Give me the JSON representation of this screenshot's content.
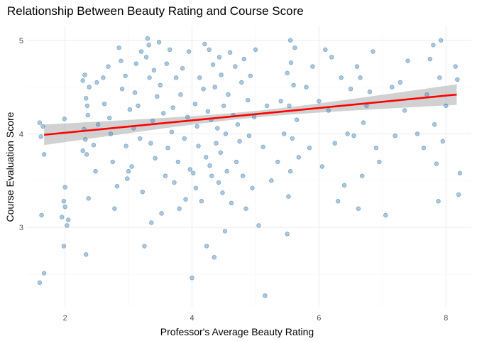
{
  "chart_data": {
    "type": "scatter",
    "title": "Relationship Between Beauty Rating and Course Score",
    "xlabel": "Professor's Average Beauty Rating",
    "ylabel": "Course Evaluation Score",
    "xlim": [
      1.4,
      8.4
    ],
    "ylim": [
      2.15,
      5.15
    ],
    "x_ticks": [
      2,
      4,
      6,
      8
    ],
    "y_ticks": [
      3,
      4,
      5
    ],
    "grid": true,
    "legend": "none",
    "colors": {
      "points": "#4682b4",
      "fit_line": "#ff0000",
      "ci_band": "#999999"
    },
    "fit": {
      "method": "linear",
      "x": [
        1.67,
        8.17
      ],
      "y": [
        3.99,
        4.42
      ],
      "ci_halfwidth_ends": 0.11,
      "ci_halfwidth_mid": 0.035
    },
    "points": [
      [
        1.6,
        2.41
      ],
      [
        1.67,
        2.51
      ],
      [
        1.63,
        3.13
      ],
      [
        1.67,
        3.78
      ],
      [
        1.6,
        4.12
      ],
      [
        1.65,
        4.08
      ],
      [
        1.62,
        3.97
      ],
      [
        1.98,
        2.8
      ],
      [
        2.03,
        3.02
      ],
      [
        2.05,
        3.08
      ],
      [
        2.0,
        3.22
      ],
      [
        1.98,
        3.28
      ],
      [
        2.0,
        3.43
      ],
      [
        1.99,
        4.16
      ],
      [
        1.95,
        3.11
      ],
      [
        2.33,
        2.71
      ],
      [
        2.37,
        3.31
      ],
      [
        2.28,
        3.82
      ],
      [
        2.32,
        3.94
      ],
      [
        2.3,
        4.05
      ],
      [
        2.35,
        4.3
      ],
      [
        2.33,
        4.38
      ],
      [
        2.38,
        4.5
      ],
      [
        2.31,
        4.63
      ],
      [
        2.28,
        4.57
      ],
      [
        2.36,
        4.2
      ],
      [
        2.34,
        3.78
      ],
      [
        2.48,
        3.6
      ],
      [
        2.45,
        3.88
      ],
      [
        2.52,
        4.1
      ],
      [
        2.5,
        4.55
      ],
      [
        2.6,
        4.6
      ],
      [
        2.62,
        4.32
      ],
      [
        2.7,
        4.17
      ],
      [
        2.68,
        4.72
      ],
      [
        2.72,
        4.0
      ],
      [
        2.75,
        3.7
      ],
      [
        2.78,
        3.2
      ],
      [
        2.82,
        3.44
      ],
      [
        2.85,
        4.92
      ],
      [
        2.88,
        4.78
      ],
      [
        2.9,
        4.48
      ],
      [
        2.95,
        4.62
      ],
      [
        2.96,
        3.87
      ],
      [
        2.98,
        3.52
      ],
      [
        3.0,
        3.6
      ],
      [
        3.02,
        4.26
      ],
      [
        3.05,
        3.65
      ],
      [
        3.08,
        4.06
      ],
      [
        3.1,
        4.44
      ],
      [
        3.12,
        4.75
      ],
      [
        3.15,
        4.3
      ],
      [
        3.18,
        3.95
      ],
      [
        3.2,
        4.88
      ],
      [
        3.22,
        3.38
      ],
      [
        3.25,
        2.8
      ],
      [
        3.28,
        4.82
      ],
      [
        3.3,
        5.02
      ],
      [
        3.32,
        4.95
      ],
      [
        3.33,
        4.6
      ],
      [
        3.35,
        3.9
      ],
      [
        3.36,
        3.05
      ],
      [
        3.38,
        4.14
      ],
      [
        3.4,
        4.68
      ],
      [
        3.42,
        3.74
      ],
      [
        3.45,
        4.4
      ],
      [
        3.48,
        4.98
      ],
      [
        3.5,
        4.52
      ],
      [
        3.52,
        3.15
      ],
      [
        3.55,
        4.22
      ],
      [
        3.58,
        3.55
      ],
      [
        3.6,
        4.75
      ],
      [
        3.62,
        3.85
      ],
      [
        3.65,
        4.9
      ],
      [
        3.68,
        4.02
      ],
      [
        3.7,
        4.28
      ],
      [
        3.72,
        3.48
      ],
      [
        3.75,
        4.6
      ],
      [
        3.78,
        3.7
      ],
      [
        3.8,
        3.2
      ],
      [
        3.82,
        4.42
      ],
      [
        3.85,
        4.7
      ],
      [
        3.88,
        3.95
      ],
      [
        3.9,
        3.3
      ],
      [
        3.93,
        4.18
      ],
      [
        3.95,
        4.88
      ],
      [
        3.97,
        3.62
      ],
      [
        4.0,
        2.46
      ],
      [
        4.02,
        3.58
      ],
      [
        4.05,
        4.32
      ],
      [
        4.06,
        3.42
      ],
      [
        4.08,
        4.08
      ],
      [
        4.1,
        3.87
      ],
      [
        4.12,
        4.6
      ],
      [
        4.15,
        3.28
      ],
      [
        4.18,
        4.48
      ],
      [
        4.2,
        4.96
      ],
      [
        4.22,
        3.75
      ],
      [
        4.23,
        2.8
      ],
      [
        4.25,
        4.24
      ],
      [
        4.27,
        4.9
      ],
      [
        4.28,
        3.66
      ],
      [
        4.3,
        4.15
      ],
      [
        4.31,
        3.55
      ],
      [
        4.33,
        4.74
      ],
      [
        4.35,
        2.68
      ],
      [
        4.36,
        4.5
      ],
      [
        4.38,
        3.9
      ],
      [
        4.4,
        4.06
      ],
      [
        4.42,
        3.48
      ],
      [
        4.43,
        4.82
      ],
      [
        4.45,
        3.8
      ],
      [
        4.46,
        4.63
      ],
      [
        4.48,
        3.37
      ],
      [
        4.5,
        4.3
      ],
      [
        4.52,
        2.96
      ],
      [
        4.53,
        4.0
      ],
      [
        4.55,
        3.6
      ],
      [
        4.57,
        4.42
      ],
      [
        4.6,
        4.87
      ],
      [
        4.62,
        3.26
      ],
      [
        4.65,
        4.2
      ],
      [
        4.68,
        4.72
      ],
      [
        4.7,
        3.7
      ],
      [
        4.72,
        4.1
      ],
      [
        4.75,
        3.92
      ],
      [
        4.78,
        4.55
      ],
      [
        4.8,
        3.55
      ],
      [
        4.82,
        4.8
      ],
      [
        4.85,
        3.2
      ],
      [
        4.88,
        4.36
      ],
      [
        4.9,
        3.98
      ],
      [
        4.92,
        4.62
      ],
      [
        4.95,
        3.42
      ],
      [
        4.98,
        4.18
      ],
      [
        5.0,
        4.9
      ],
      [
        5.05,
        3.02
      ],
      [
        5.12,
        3.86
      ],
      [
        5.18,
        4.3
      ],
      [
        5.15,
        2.27
      ],
      [
        5.25,
        3.5
      ],
      [
        5.35,
        3.7
      ],
      [
        5.4,
        4.35
      ],
      [
        5.45,
        4.0
      ],
      [
        5.5,
        2.93
      ],
      [
        5.52,
        3.33
      ],
      [
        5.55,
        3.6
      ],
      [
        5.58,
        3.95
      ],
      [
        5.53,
        4.3
      ],
      [
        5.6,
        4.52
      ],
      [
        5.5,
        4.65
      ],
      [
        5.56,
        4.76
      ],
      [
        5.62,
        4.92
      ],
      [
        5.55,
        5.0
      ],
      [
        5.65,
        4.15
      ],
      [
        5.68,
        3.75
      ],
      [
        5.8,
        4.5
      ],
      [
        5.85,
        3.85
      ],
      [
        5.9,
        4.72
      ],
      [
        6.0,
        4.35
      ],
      [
        6.05,
        3.65
      ],
      [
        6.1,
        4.9
      ],
      [
        6.15,
        4.25
      ],
      [
        6.2,
        4.82
      ],
      [
        6.25,
        3.9
      ],
      [
        6.3,
        3.28
      ],
      [
        6.35,
        4.6
      ],
      [
        6.4,
        3.45
      ],
      [
        6.45,
        4.0
      ],
      [
        6.5,
        4.48
      ],
      [
        6.55,
        3.98
      ],
      [
        6.6,
        4.72
      ],
      [
        6.62,
        3.2
      ],
      [
        6.65,
        4.6
      ],
      [
        6.68,
        3.55
      ],
      [
        6.7,
        4.12
      ],
      [
        6.75,
        4.3
      ],
      [
        6.8,
        4.45
      ],
      [
        6.85,
        4.88
      ],
      [
        6.9,
        3.85
      ],
      [
        6.95,
        3.7
      ],
      [
        7.05,
        3.13
      ],
      [
        7.15,
        4.5
      ],
      [
        7.2,
        3.98
      ],
      [
        7.28,
        4.55
      ],
      [
        7.35,
        4.25
      ],
      [
        7.4,
        4.78
      ],
      [
        7.55,
        4.0
      ],
      [
        7.65,
        3.85
      ],
      [
        7.7,
        4.42
      ],
      [
        7.75,
        4.8
      ],
      [
        7.8,
        4.95
      ],
      [
        7.82,
        4.1
      ],
      [
        7.85,
        3.68
      ],
      [
        7.88,
        3.28
      ],
      [
        7.9,
        4.6
      ],
      [
        7.92,
        5.0
      ],
      [
        7.95,
        3.92
      ],
      [
        8.0,
        4.3
      ],
      [
        8.15,
        4.72
      ],
      [
        8.18,
        4.58
      ],
      [
        8.2,
        3.35
      ],
      [
        8.22,
        3.58
      ]
    ]
  }
}
